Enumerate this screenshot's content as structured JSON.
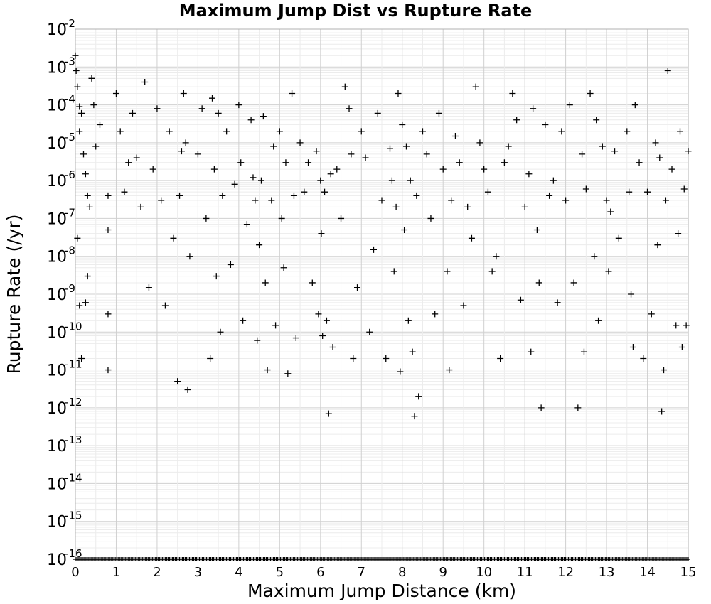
{
  "chart_data": {
    "type": "scatter",
    "title": "Maximum Jump Dist vs Rupture Rate",
    "xlabel": "Maximum Jump Distance (km)",
    "ylabel": "Rupture Rate (/yr)",
    "xlim": [
      0,
      15
    ],
    "ylim": [
      1e-16,
      0.01
    ],
    "y_scale": "log",
    "grid": true,
    "marker": "plus",
    "marker_color": "#000000",
    "x_ticks": [
      "0",
      "1",
      "2",
      "3",
      "4",
      "5",
      "6",
      "7",
      "8",
      "9",
      "10",
      "11",
      "12",
      "13",
      "14",
      "15"
    ],
    "y_ticks": [
      {
        "base": "10",
        "exp": "-2"
      },
      {
        "base": "10",
        "exp": "-3"
      },
      {
        "base": "10",
        "exp": "-4"
      },
      {
        "base": "10",
        "exp": "-5"
      },
      {
        "base": "10",
        "exp": "-6"
      },
      {
        "base": "10",
        "exp": "-7"
      },
      {
        "base": "10",
        "exp": "-8"
      },
      {
        "base": "10",
        "exp": "-9"
      },
      {
        "base": "10",
        "exp": "-10"
      },
      {
        "base": "10",
        "exp": "-11"
      },
      {
        "base": "10",
        "exp": "-12"
      },
      {
        "base": "10",
        "exp": "-13"
      },
      {
        "base": "10",
        "exp": "-14"
      },
      {
        "base": "10",
        "exp": "-15"
      },
      {
        "base": "10",
        "exp": "-16"
      }
    ],
    "series": [
      {
        "points": [
          [
            0.0,
            0.002
          ],
          [
            0.02,
            0.0008
          ],
          [
            0.05,
            0.0003
          ],
          [
            0.1,
            9e-05
          ],
          [
            0.1,
            2e-05
          ],
          [
            0.15,
            6e-05
          ],
          [
            0.2,
            5e-06
          ],
          [
            0.25,
            1.5e-06
          ],
          [
            0.3,
            4e-07
          ],
          [
            0.35,
            2e-07
          ],
          [
            0.05,
            3e-08
          ],
          [
            0.1,
            5e-10
          ],
          [
            0.15,
            2e-11
          ],
          [
            0.25,
            6e-10
          ],
          [
            0.3,
            3e-09
          ],
          [
            0.4,
            0.0005
          ],
          [
            0.45,
            0.0001
          ],
          [
            0.5,
            8e-06
          ],
          [
            0.6,
            3e-05
          ],
          [
            0.8,
            4e-07
          ],
          [
            0.8,
            5e-08
          ],
          [
            0.8,
            1e-11
          ],
          [
            0.8,
            3e-10
          ],
          [
            1.0,
            0.0002
          ],
          [
            1.1,
            2e-05
          ],
          [
            1.2,
            5e-07
          ],
          [
            1.3,
            3e-06
          ],
          [
            1.4,
            6e-05
          ],
          [
            1.5,
            4e-06
          ],
          [
            1.6,
            2e-07
          ],
          [
            1.7,
            0.0004
          ],
          [
            1.8,
            1.5e-09
          ],
          [
            1.9,
            2e-06
          ],
          [
            2.0,
            8e-05
          ],
          [
            2.1,
            3e-07
          ],
          [
            2.2,
            5e-10
          ],
          [
            2.3,
            2e-05
          ],
          [
            2.4,
            3e-08
          ],
          [
            2.5,
            5e-12
          ],
          [
            2.55,
            4e-07
          ],
          [
            2.6,
            6e-06
          ],
          [
            2.65,
            0.0002
          ],
          [
            2.7,
            1e-05
          ],
          [
            2.75,
            3e-12
          ],
          [
            2.8,
            1e-08
          ],
          [
            3.0,
            5e-06
          ],
          [
            3.1,
            8e-05
          ],
          [
            3.2,
            1e-07
          ],
          [
            3.3,
            2e-11
          ],
          [
            3.35,
            0.00015
          ],
          [
            3.4,
            2e-06
          ],
          [
            3.45,
            3e-09
          ],
          [
            3.5,
            6e-05
          ],
          [
            3.55,
            1e-10
          ],
          [
            3.6,
            4e-07
          ],
          [
            3.7,
            2e-05
          ],
          [
            3.8,
            6e-09
          ],
          [
            3.9,
            8e-07
          ],
          [
            4.0,
            0.0001
          ],
          [
            4.05,
            3e-06
          ],
          [
            4.1,
            2e-10
          ],
          [
            4.2,
            7e-08
          ],
          [
            4.3,
            4e-05
          ],
          [
            4.35,
            1.2e-06
          ],
          [
            4.4,
            3e-07
          ],
          [
            4.45,
            6e-11
          ],
          [
            4.5,
            2e-08
          ],
          [
            4.55,
            1e-06
          ],
          [
            4.6,
            5e-05
          ],
          [
            4.65,
            2e-09
          ],
          [
            4.7,
            1e-11
          ],
          [
            4.8,
            3e-07
          ],
          [
            4.85,
            8e-06
          ],
          [
            4.9,
            1.5e-10
          ],
          [
            5.0,
            2e-05
          ],
          [
            5.05,
            1e-07
          ],
          [
            5.1,
            5e-09
          ],
          [
            5.15,
            3e-06
          ],
          [
            5.2,
            8e-12
          ],
          [
            5.3,
            0.0002
          ],
          [
            5.35,
            4e-07
          ],
          [
            5.4,
            7e-11
          ],
          [
            5.5,
            1e-05
          ],
          [
            5.6,
            5e-07
          ],
          [
            5.7,
            3e-06
          ],
          [
            5.8,
            2e-09
          ],
          [
            5.9,
            6e-06
          ],
          [
            5.95,
            3e-10
          ],
          [
            6.0,
            1e-06
          ],
          [
            6.02,
            4e-08
          ],
          [
            6.05,
            8e-11
          ],
          [
            6.1,
            5e-07
          ],
          [
            6.15,
            2e-10
          ],
          [
            6.2,
            7e-13
          ],
          [
            6.25,
            1.5e-06
          ],
          [
            6.3,
            4e-11
          ],
          [
            6.4,
            2e-06
          ],
          [
            6.5,
            1e-07
          ],
          [
            6.6,
            0.0003
          ],
          [
            6.7,
            8e-05
          ],
          [
            6.75,
            5e-06
          ],
          [
            6.8,
            2e-11
          ],
          [
            6.9,
            1.5e-09
          ],
          [
            7.0,
            2e-05
          ],
          [
            7.1,
            4e-06
          ],
          [
            7.2,
            1e-10
          ],
          [
            7.3,
            1.5e-08
          ],
          [
            7.4,
            6e-05
          ],
          [
            7.5,
            3e-07
          ],
          [
            7.6,
            2e-11
          ],
          [
            7.7,
            7e-06
          ],
          [
            7.75,
            1e-06
          ],
          [
            7.8,
            4e-09
          ],
          [
            7.85,
            2e-07
          ],
          [
            7.9,
            0.0002
          ],
          [
            7.95,
            9e-12
          ],
          [
            8.0,
            3e-05
          ],
          [
            8.05,
            5e-08
          ],
          [
            8.1,
            8e-06
          ],
          [
            8.15,
            2e-10
          ],
          [
            8.2,
            1e-06
          ],
          [
            8.25,
            3e-11
          ],
          [
            8.3,
            6e-13
          ],
          [
            8.35,
            4e-07
          ],
          [
            8.4,
            2e-12
          ],
          [
            8.5,
            2e-05
          ],
          [
            8.6,
            5e-06
          ],
          [
            8.7,
            1e-07
          ],
          [
            8.8,
            3e-10
          ],
          [
            8.9,
            6e-05
          ],
          [
            9.0,
            2e-06
          ],
          [
            9.1,
            4e-09
          ],
          [
            9.15,
            1e-11
          ],
          [
            9.2,
            3e-07
          ],
          [
            9.3,
            1.5e-05
          ],
          [
            9.4,
            3e-06
          ],
          [
            9.5,
            5e-10
          ],
          [
            9.6,
            2e-07
          ],
          [
            9.7,
            3e-08
          ],
          [
            9.8,
            0.0003
          ],
          [
            9.9,
            1e-05
          ],
          [
            10.0,
            2e-06
          ],
          [
            10.1,
            5e-07
          ],
          [
            10.2,
            4e-09
          ],
          [
            10.3,
            1e-08
          ],
          [
            10.4,
            2e-11
          ],
          [
            10.5,
            3e-06
          ],
          [
            10.6,
            8e-06
          ],
          [
            10.7,
            0.0002
          ],
          [
            10.8,
            4e-05
          ],
          [
            10.9,
            7e-10
          ],
          [
            11.0,
            2e-07
          ],
          [
            11.1,
            1.5e-06
          ],
          [
            11.15,
            3e-11
          ],
          [
            11.2,
            8e-05
          ],
          [
            11.3,
            5e-08
          ],
          [
            11.35,
            2e-09
          ],
          [
            11.4,
            1e-12
          ],
          [
            11.5,
            3e-05
          ],
          [
            11.6,
            4e-07
          ],
          [
            11.7,
            1e-06
          ],
          [
            11.8,
            6e-10
          ],
          [
            11.9,
            2e-05
          ],
          [
            12.0,
            3e-07
          ],
          [
            12.1,
            0.0001
          ],
          [
            12.2,
            2e-09
          ],
          [
            12.3,
            1e-12
          ],
          [
            12.4,
            5e-06
          ],
          [
            12.45,
            3e-11
          ],
          [
            12.5,
            6e-07
          ],
          [
            12.6,
            0.0002
          ],
          [
            12.7,
            1e-08
          ],
          [
            12.75,
            4e-05
          ],
          [
            12.8,
            2e-10
          ],
          [
            12.9,
            8e-06
          ],
          [
            13.0,
            3e-07
          ],
          [
            13.05,
            4e-09
          ],
          [
            13.1,
            1.5e-07
          ],
          [
            13.2,
            6e-06
          ],
          [
            13.3,
            3e-08
          ],
          [
            13.5,
            2e-05
          ],
          [
            13.55,
            5e-07
          ],
          [
            13.6,
            1e-09
          ],
          [
            13.65,
            4e-11
          ],
          [
            13.7,
            0.0001
          ],
          [
            13.8,
            3e-06
          ],
          [
            13.9,
            2e-11
          ],
          [
            14.0,
            5e-07
          ],
          [
            14.1,
            3e-10
          ],
          [
            14.2,
            1e-05
          ],
          [
            14.25,
            2e-08
          ],
          [
            14.3,
            4e-06
          ],
          [
            14.35,
            8e-13
          ],
          [
            14.4,
            1e-11
          ],
          [
            14.45,
            3e-07
          ],
          [
            14.5,
            0.0008
          ],
          [
            14.6,
            2e-06
          ],
          [
            14.7,
            1.5e-10
          ],
          [
            14.75,
            4e-08
          ],
          [
            14.8,
            2e-05
          ],
          [
            14.85,
            4e-11
          ],
          [
            14.9,
            6e-07
          ],
          [
            14.95,
            1.5e-10
          ],
          [
            15.0,
            6e-06
          ]
        ]
      }
    ]
  }
}
